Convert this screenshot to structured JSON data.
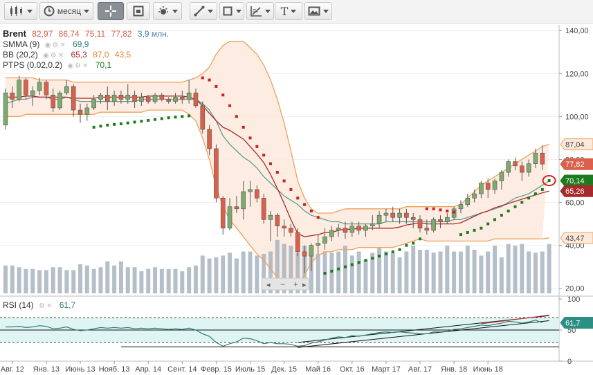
{
  "toolbar": {
    "period_label": "месяц",
    "text_tool_label": "T"
  },
  "legend": {
    "symbol": "Brent",
    "open": "82,97",
    "high": "86,74",
    "low": "75,11",
    "close": "77,82",
    "volume": "3,9 млн.",
    "smma_name": "SMMA (9)",
    "smma_value": "69,9",
    "bb_name": "BB (20,2)",
    "bb_mid": "65,3",
    "bb_upper": "87,0",
    "bb_lower": "43,5",
    "ptps_name": "PTPS (0.02,0.2)",
    "ptps_value": "70,1",
    "rsi_name": "RSI (14)",
    "rsi_value": "61,7"
  },
  "price_tags": {
    "bb_upper": "87,04",
    "close": "77,82",
    "ptps": "70,14",
    "bb_mid": "65,26",
    "bb_lower": "43,47",
    "rsi": "61,7"
  },
  "colors": {
    "up_candle": "#7daa6e",
    "down_candle": "#d9604a",
    "bb_band": "#f0a05a",
    "bb_fill": "#fde9dc",
    "smma": "#5b9e93",
    "bb_mid_line": "#a62a2a",
    "ptps_up": "#1e7a1e",
    "ptps_down": "#cc1f1f",
    "volume": "#a8b4c0",
    "rsi_line": "#2c7a73",
    "rsi_fill": "#dff5f3"
  },
  "chart_data": {
    "type": "candlestick",
    "period": "month",
    "x_tick_labels": [
      "Авг. 12",
      "Янв. 13",
      "Июнь 13",
      "Нояб. 13",
      "Апр. 14",
      "Сент. 14",
      "Февр. 15",
      "Июль 15",
      "Дек. 15",
      "Май 16",
      "Окт. 16",
      "Март 17",
      "Авг. 17",
      "Янв. 18",
      "Июнь 18"
    ],
    "price_axis": {
      "ticks": [
        "140,00",
        "120,00",
        "100,00",
        "80,00",
        "60,00",
        "40,00",
        "20,00"
      ],
      "ylim": [
        17,
        142
      ]
    },
    "rsi_axis": {
      "ticks": [
        "100",
        "50",
        "0"
      ],
      "ylim": [
        0,
        100
      ],
      "levels": [
        70,
        30
      ]
    },
    "candles": [
      {
        "o": 96,
        "h": 113,
        "l": 94,
        "c": 111
      },
      {
        "o": 111,
        "h": 114,
        "l": 104,
        "c": 108
      },
      {
        "o": 108,
        "h": 119,
        "l": 107,
        "c": 117
      },
      {
        "o": 117,
        "h": 118,
        "l": 108,
        "c": 110
      },
      {
        "o": 110,
        "h": 114,
        "l": 105,
        "c": 112
      },
      {
        "o": 112,
        "h": 118,
        "l": 110,
        "c": 116
      },
      {
        "o": 116,
        "h": 117,
        "l": 108,
        "c": 110
      },
      {
        "o": 110,
        "h": 113,
        "l": 102,
        "c": 104
      },
      {
        "o": 104,
        "h": 112,
        "l": 103,
        "c": 111
      },
      {
        "o": 111,
        "h": 117,
        "l": 110,
        "c": 114
      },
      {
        "o": 114,
        "h": 115,
        "l": 100,
        "c": 103
      },
      {
        "o": 103,
        "h": 106,
        "l": 97,
        "c": 101
      },
      {
        "o": 101,
        "h": 106,
        "l": 98,
        "c": 104
      },
      {
        "o": 104,
        "h": 110,
        "l": 103,
        "c": 108
      },
      {
        "o": 108,
        "h": 111,
        "l": 106,
        "c": 110
      },
      {
        "o": 110,
        "h": 114,
        "l": 103,
        "c": 107
      },
      {
        "o": 107,
        "h": 112,
        "l": 105,
        "c": 110
      },
      {
        "o": 110,
        "h": 112,
        "l": 106,
        "c": 108
      },
      {
        "o": 108,
        "h": 115,
        "l": 106,
        "c": 110
      },
      {
        "o": 110,
        "h": 112,
        "l": 104,
        "c": 107
      },
      {
        "o": 107,
        "h": 111,
        "l": 105,
        "c": 109
      },
      {
        "o": 109,
        "h": 110,
        "l": 106,
        "c": 107
      },
      {
        "o": 107,
        "h": 111,
        "l": 106,
        "c": 110
      },
      {
        "o": 110,
        "h": 111,
        "l": 107,
        "c": 108
      },
      {
        "o": 108,
        "h": 109,
        "l": 106,
        "c": 107
      },
      {
        "o": 107,
        "h": 111,
        "l": 106,
        "c": 109
      },
      {
        "o": 109,
        "h": 112,
        "l": 106,
        "c": 108
      },
      {
        "o": 108,
        "h": 117,
        "l": 106,
        "c": 111
      },
      {
        "o": 111,
        "h": 113,
        "l": 104,
        "c": 105
      },
      {
        "o": 105,
        "h": 107,
        "l": 92,
        "c": 94
      },
      {
        "o": 94,
        "h": 96,
        "l": 82,
        "c": 85
      },
      {
        "o": 85,
        "h": 87,
        "l": 60,
        "c": 62
      },
      {
        "o": 62,
        "h": 63,
        "l": 45,
        "c": 48
      },
      {
        "o": 48,
        "h": 62,
        "l": 47,
        "c": 58
      },
      {
        "o": 58,
        "h": 63,
        "l": 55,
        "c": 57
      },
      {
        "o": 57,
        "h": 70,
        "l": 52,
        "c": 65
      },
      {
        "o": 65,
        "h": 70,
        "l": 58,
        "c": 66
      },
      {
        "o": 66,
        "h": 68,
        "l": 60,
        "c": 62
      },
      {
        "o": 62,
        "h": 64,
        "l": 50,
        "c": 52
      },
      {
        "o": 52,
        "h": 56,
        "l": 42,
        "c": 54
      },
      {
        "o": 54,
        "h": 55,
        "l": 44,
        "c": 49
      },
      {
        "o": 49,
        "h": 52,
        "l": 44,
        "c": 48
      },
      {
        "o": 48,
        "h": 50,
        "l": 44,
        "c": 46
      },
      {
        "o": 46,
        "h": 48,
        "l": 35,
        "c": 37
      },
      {
        "o": 37,
        "h": 40,
        "l": 27,
        "c": 35
      },
      {
        "o": 35,
        "h": 41,
        "l": 28,
        "c": 40
      },
      {
        "o": 40,
        "h": 45,
        "l": 36,
        "c": 41
      },
      {
        "o": 41,
        "h": 48,
        "l": 38,
        "c": 44
      },
      {
        "o": 44,
        "h": 49,
        "l": 42,
        "c": 47
      },
      {
        "o": 47,
        "h": 50,
        "l": 44,
        "c": 48
      },
      {
        "o": 48,
        "h": 51,
        "l": 43,
        "c": 46
      },
      {
        "o": 46,
        "h": 51,
        "l": 44,
        "c": 49
      },
      {
        "o": 49,
        "h": 51,
        "l": 45,
        "c": 47
      },
      {
        "o": 47,
        "h": 50,
        "l": 44,
        "c": 49
      },
      {
        "o": 49,
        "h": 54,
        "l": 47,
        "c": 50
      },
      {
        "o": 50,
        "h": 56,
        "l": 48,
        "c": 54
      },
      {
        "o": 54,
        "h": 57,
        "l": 51,
        "c": 55
      },
      {
        "o": 55,
        "h": 58,
        "l": 51,
        "c": 53
      },
      {
        "o": 53,
        "h": 57,
        "l": 50,
        "c": 55
      },
      {
        "o": 55,
        "h": 57,
        "l": 50,
        "c": 53
      },
      {
        "o": 53,
        "h": 55,
        "l": 48,
        "c": 52
      },
      {
        "o": 52,
        "h": 54,
        "l": 46,
        "c": 48
      },
      {
        "o": 48,
        "h": 52,
        "l": 45,
        "c": 47
      },
      {
        "o": 47,
        "h": 53,
        "l": 46,
        "c": 52
      },
      {
        "o": 52,
        "h": 54,
        "l": 48,
        "c": 51
      },
      {
        "o": 51,
        "h": 55,
        "l": 50,
        "c": 53
      },
      {
        "o": 53,
        "h": 58,
        "l": 52,
        "c": 57
      },
      {
        "o": 57,
        "h": 61,
        "l": 55,
        "c": 59
      },
      {
        "o": 59,
        "h": 64,
        "l": 58,
        "c": 62
      },
      {
        "o": 62,
        "h": 66,
        "l": 60,
        "c": 64
      },
      {
        "o": 64,
        "h": 70,
        "l": 62,
        "c": 69
      },
      {
        "o": 69,
        "h": 71,
        "l": 62,
        "c": 66
      },
      {
        "o": 66,
        "h": 71,
        "l": 64,
        "c": 70
      },
      {
        "o": 70,
        "h": 75,
        "l": 66,
        "c": 74
      },
      {
        "o": 74,
        "h": 80,
        "l": 72,
        "c": 79
      },
      {
        "o": 79,
        "h": 81,
        "l": 75,
        "c": 77
      },
      {
        "o": 77,
        "h": 79,
        "l": 70,
        "c": 74
      },
      {
        "o": 74,
        "h": 80,
        "l": 72,
        "c": 78
      },
      {
        "o": 78,
        "h": 85,
        "l": 76,
        "c": 83
      },
      {
        "o": 82.97,
        "h": 86.74,
        "l": 75.11,
        "c": 77.82
      }
    ],
    "volume": [
      0.48,
      0.48,
      0.45,
      0.42,
      0.42,
      0.4,
      0.4,
      0.45,
      0.45,
      0.4,
      0.4,
      0.5,
      0.48,
      0.42,
      0.45,
      0.55,
      0.48,
      0.55,
      0.45,
      0.45,
      0.38,
      0.42,
      0.45,
      0.42,
      0.42,
      0.42,
      0.38,
      0.45,
      0.48,
      0.65,
      0.6,
      0.62,
      0.65,
      0.7,
      0.6,
      0.72,
      0.72,
      0.65,
      0.68,
      0.72,
      0.92,
      0.85,
      0.82,
      0.7,
      0.82,
      0.72,
      0.68,
      0.72,
      0.7,
      0.72,
      0.82,
      0.65,
      0.72,
      0.58,
      0.7,
      0.78,
      0.72,
      0.7,
      0.62,
      0.72,
      0.82,
      0.75,
      0.75,
      0.7,
      0.72,
      0.82,
      0.72,
      0.72,
      0.82,
      0.75,
      0.65,
      0.72,
      0.82,
      0.62,
      0.85,
      0.82,
      0.85,
      0.72,
      0.7,
      0.72,
      0.85
    ],
    "rsi": [
      55,
      55,
      56,
      54,
      55,
      57,
      56,
      52,
      53,
      55,
      51,
      49,
      50,
      52,
      54,
      53,
      54,
      53,
      54,
      52,
      53,
      52,
      53,
      52,
      51,
      52,
      51,
      53,
      50,
      44,
      40,
      30,
      24,
      28,
      31,
      37,
      36,
      33,
      28,
      30,
      28,
      28,
      27,
      24,
      25,
      29,
      31,
      34,
      37,
      39,
      38,
      41,
      40,
      42,
      44,
      46,
      47,
      46,
      47,
      46,
      45,
      44,
      44,
      47,
      47,
      48,
      51,
      52,
      54,
      56,
      58,
      57,
      59,
      61,
      64,
      63,
      61,
      63,
      66,
      61.7
    ],
    "bb_upper": [
      118,
      118,
      118,
      118,
      118,
      117,
      117,
      117,
      117,
      117,
      116,
      116,
      116,
      116,
      116,
      116,
      116,
      116,
      116,
      116,
      116,
      116,
      116,
      116,
      116,
      116,
      116,
      117,
      118,
      120,
      123,
      129,
      133,
      135,
      135,
      135,
      132,
      129,
      124,
      117,
      108,
      97,
      84,
      70,
      62,
      57,
      55,
      55,
      55,
      56,
      57,
      57,
      57,
      57,
      57,
      57,
      57,
      57,
      57,
      58,
      58,
      58,
      58,
      58,
      58,
      58,
      58,
      59,
      62,
      65,
      68,
      70,
      72,
      74,
      76,
      78,
      80,
      82,
      84,
      86,
      87.04
    ],
    "bb_lower": [
      100,
      100,
      100,
      101,
      101,
      101,
      101,
      101,
      101,
      101,
      101,
      101,
      101,
      101,
      102,
      102,
      102,
      102,
      102,
      102,
      102,
      103,
      103,
      103,
      103,
      103,
      103,
      101,
      98,
      90,
      80,
      67,
      58,
      52,
      48,
      44,
      40,
      36,
      33,
      29,
      25,
      22,
      20,
      21,
      26,
      32,
      35,
      37,
      37,
      38,
      38,
      38,
      39,
      39,
      39,
      39,
      39,
      39,
      40,
      41,
      42,
      43,
      42,
      42,
      42,
      42,
      42,
      42,
      42,
      42,
      42,
      42,
      43,
      43,
      43,
      43,
      43,
      43,
      43,
      43,
      43.47
    ],
    "bb_mid": [
      109,
      109,
      109,
      109.5,
      109.5,
      109,
      109,
      109,
      109,
      109,
      108.5,
      108.5,
      108.5,
      108.5,
      109,
      109,
      109,
      109,
      109,
      109,
      109,
      109.5,
      109.5,
      109.5,
      109.5,
      109.5,
      109.5,
      109,
      108,
      105,
      101.5,
      98,
      95,
      93.5,
      91.5,
      89.5,
      86,
      82.5,
      78.5,
      73,
      66.5,
      59.5,
      52,
      45.5,
      44,
      44.5,
      45,
      46,
      46,
      47,
      47.5,
      47.5,
      48,
      48,
      48,
      48,
      48,
      48,
      48.5,
      49.5,
      50,
      50.5,
      50,
      50,
      50,
      50,
      50,
      50.5,
      52,
      53.5,
      55,
      56,
      57.5,
      58.5,
      59.5,
      60.5,
      61.5,
      62.5,
      63.5,
      64.5,
      65.26
    ],
    "smma": [
      106,
      107,
      108,
      108,
      109,
      109,
      109,
      108,
      108,
      109,
      108,
      107,
      107,
      107,
      107,
      107,
      107,
      107,
      107,
      107,
      108,
      108,
      108,
      108,
      108,
      108,
      108,
      108,
      108,
      106,
      103,
      98,
      91,
      87,
      84,
      81,
      79,
      76,
      72,
      69,
      66,
      63,
      61,
      59,
      56,
      54,
      53,
      52,
      51,
      51,
      50,
      50,
      50,
      50,
      50,
      50,
      51,
      51,
      51,
      51,
      51,
      51,
      51,
      51,
      51,
      51,
      52,
      52,
      53,
      54,
      55,
      56,
      57,
      58,
      60,
      62,
      63,
      64,
      66,
      68,
      69.9
    ],
    "ptps": [
      {
        "i": 13,
        "v": 95,
        "s": "up"
      },
      {
        "i": 14,
        "v": 95.5,
        "s": "up"
      },
      {
        "i": 15,
        "v": 96,
        "s": "up"
      },
      {
        "i": 16,
        "v": 96.3,
        "s": "up"
      },
      {
        "i": 17,
        "v": 96.6,
        "s": "up"
      },
      {
        "i": 18,
        "v": 97,
        "s": "up"
      },
      {
        "i": 19,
        "v": 97.4,
        "s": "up"
      },
      {
        "i": 20,
        "v": 97.8,
        "s": "up"
      },
      {
        "i": 21,
        "v": 98.2,
        "s": "up"
      },
      {
        "i": 22,
        "v": 98.6,
        "s": "up"
      },
      {
        "i": 23,
        "v": 99,
        "s": "up"
      },
      {
        "i": 24,
        "v": 99.4,
        "s": "up"
      },
      {
        "i": 25,
        "v": 99.7,
        "s": "up"
      },
      {
        "i": 26,
        "v": 100,
        "s": "up"
      },
      {
        "i": 27,
        "v": 100.3,
        "s": "up"
      },
      {
        "i": 29,
        "v": 118,
        "s": "down"
      },
      {
        "i": 30,
        "v": 117,
        "s": "down"
      },
      {
        "i": 31,
        "v": 114,
        "s": "down"
      },
      {
        "i": 32,
        "v": 110,
        "s": "down"
      },
      {
        "i": 33,
        "v": 105,
        "s": "down"
      },
      {
        "i": 34,
        "v": 100,
        "s": "down"
      },
      {
        "i": 35,
        "v": 95,
        "s": "down"
      },
      {
        "i": 36,
        "v": 90,
        "s": "down"
      },
      {
        "i": 37,
        "v": 86,
        "s": "down"
      },
      {
        "i": 38,
        "v": 82,
        "s": "down"
      },
      {
        "i": 39,
        "v": 78,
        "s": "down"
      },
      {
        "i": 40,
        "v": 74,
        "s": "down"
      },
      {
        "i": 41,
        "v": 70,
        "s": "down"
      },
      {
        "i": 42,
        "v": 66,
        "s": "down"
      },
      {
        "i": 43,
        "v": 62,
        "s": "down"
      },
      {
        "i": 44,
        "v": 59,
        "s": "down"
      },
      {
        "i": 45,
        "v": 56,
        "s": "down"
      },
      {
        "i": 46,
        "v": 53,
        "s": "down"
      },
      {
        "i": 47,
        "v": 27,
        "s": "up"
      },
      {
        "i": 48,
        "v": 28,
        "s": "up"
      },
      {
        "i": 49,
        "v": 29,
        "s": "up"
      },
      {
        "i": 50,
        "v": 30,
        "s": "up"
      },
      {
        "i": 51,
        "v": 31,
        "s": "up"
      },
      {
        "i": 52,
        "v": 32,
        "s": "up"
      },
      {
        "i": 53,
        "v": 33,
        "s": "up"
      },
      {
        "i": 54,
        "v": 34,
        "s": "up"
      },
      {
        "i": 55,
        "v": 35,
        "s": "up"
      },
      {
        "i": 56,
        "v": 36,
        "s": "up"
      },
      {
        "i": 57,
        "v": 37,
        "s": "up"
      },
      {
        "i": 58,
        "v": 38,
        "s": "up"
      },
      {
        "i": 59,
        "v": 40,
        "s": "up"
      },
      {
        "i": 60,
        "v": 41,
        "s": "up"
      },
      {
        "i": 61,
        "v": 43,
        "s": "up"
      },
      {
        "i": 62,
        "v": 57,
        "s": "down"
      },
      {
        "i": 63,
        "v": 57,
        "s": "down"
      },
      {
        "i": 64,
        "v": 56.5,
        "s": "down"
      },
      {
        "i": 65,
        "v": 56,
        "s": "down"
      },
      {
        "i": 66,
        "v": 55.5,
        "s": "down"
      },
      {
        "i": 67,
        "v": 45,
        "s": "up"
      },
      {
        "i": 68,
        "v": 46,
        "s": "up"
      },
      {
        "i": 69,
        "v": 47,
        "s": "up"
      },
      {
        "i": 70,
        "v": 48,
        "s": "up"
      },
      {
        "i": 71,
        "v": 50,
        "s": "up"
      },
      {
        "i": 72,
        "v": 52,
        "s": "up"
      },
      {
        "i": 73,
        "v": 54,
        "s": "up"
      },
      {
        "i": 74,
        "v": 56,
        "s": "up"
      },
      {
        "i": 75,
        "v": 58,
        "s": "up"
      },
      {
        "i": 76,
        "v": 60,
        "s": "up"
      },
      {
        "i": 77,
        "v": 62,
        "s": "up"
      },
      {
        "i": 78,
        "v": 64,
        "s": "up"
      },
      {
        "i": 79,
        "v": 66,
        "s": "up"
      },
      {
        "i": 80,
        "v": 70.14,
        "s": "up"
      }
    ]
  }
}
